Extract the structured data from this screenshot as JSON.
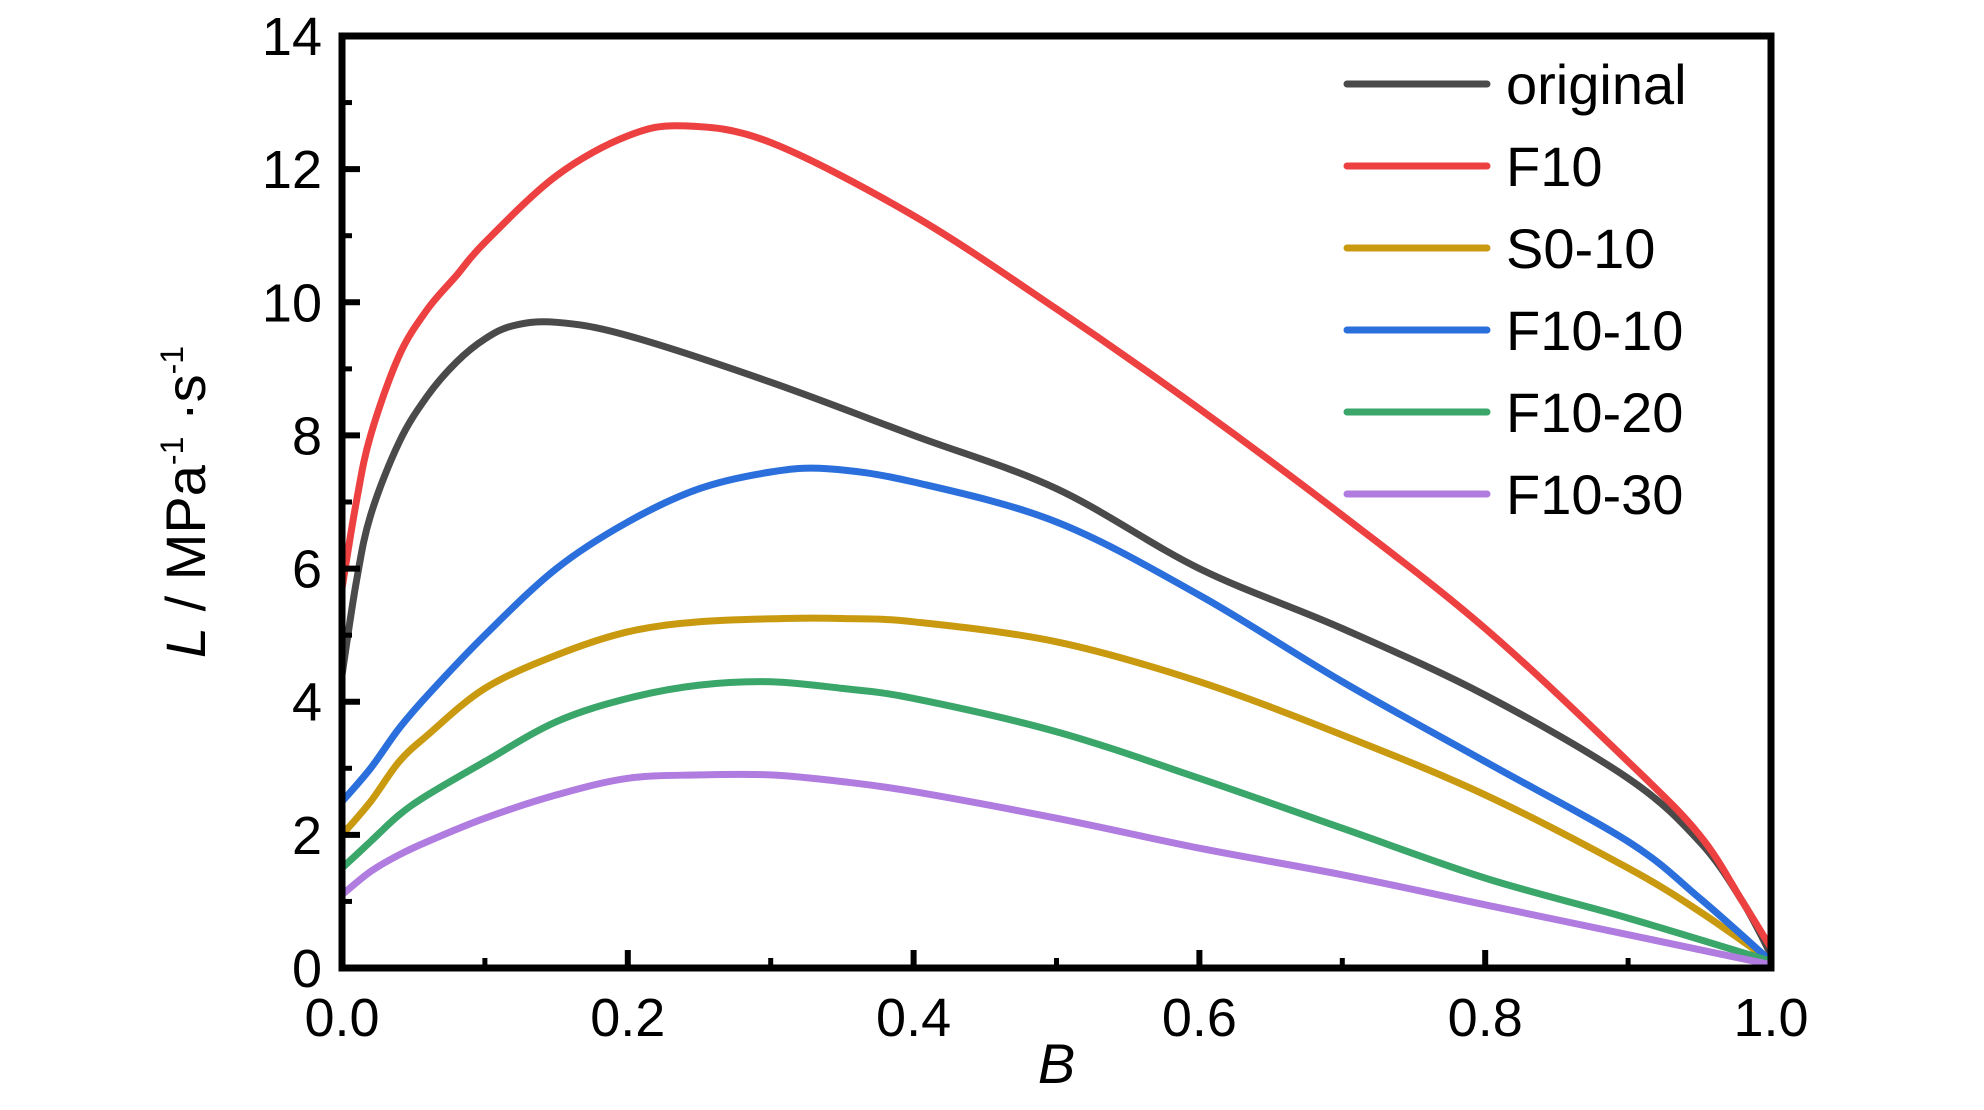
{
  "chart_data": {
    "type": "line",
    "xlabel": "B",
    "ylabel": {
      "symbol": "L",
      "separator": " / ",
      "unit_base": "MPa",
      "unit_exp1": "-1",
      "unit_mid": " ·s",
      "unit_exp2": "-1"
    },
    "xlim": [
      0,
      1
    ],
    "ylim": [
      0,
      14
    ],
    "xticks": [
      0.0,
      0.2,
      0.4,
      0.6,
      0.8,
      1.0
    ],
    "xtick_labels": [
      "0.0",
      "0.2",
      "0.4",
      "0.6",
      "0.8",
      "1.0"
    ],
    "yticks": [
      0,
      2,
      4,
      6,
      8,
      10,
      12,
      14
    ],
    "ytick_labels": [
      "0",
      "2",
      "4",
      "6",
      "8",
      "10",
      "12",
      "14"
    ],
    "grid": false,
    "legend_position": "top-right",
    "series": [
      {
        "name": "original",
        "color": "#4a4a4a",
        "points": [
          [
            0,
            4.4
          ],
          [
            0.01,
            5.8
          ],
          [
            0.02,
            6.8
          ],
          [
            0.04,
            7.9
          ],
          [
            0.06,
            8.6
          ],
          [
            0.08,
            9.1
          ],
          [
            0.1,
            9.45
          ],
          [
            0.12,
            9.65
          ],
          [
            0.15,
            9.7
          ],
          [
            0.2,
            9.5
          ],
          [
            0.3,
            8.8
          ],
          [
            0.4,
            8.0
          ],
          [
            0.5,
            7.2
          ],
          [
            0.6,
            6.0
          ],
          [
            0.7,
            5.1
          ],
          [
            0.8,
            4.1
          ],
          [
            0.9,
            2.85
          ],
          [
            0.95,
            1.9
          ],
          [
            0.98,
            1.0
          ],
          [
            1.0,
            0.2
          ]
        ]
      },
      {
        "name": "F10",
        "color": "#ed4040",
        "points": [
          [
            0,
            5.7
          ],
          [
            0.01,
            7.0
          ],
          [
            0.02,
            8.0
          ],
          [
            0.04,
            9.2
          ],
          [
            0.06,
            9.9
          ],
          [
            0.08,
            10.4
          ],
          [
            0.1,
            10.9
          ],
          [
            0.15,
            11.9
          ],
          [
            0.2,
            12.5
          ],
          [
            0.24,
            12.65
          ],
          [
            0.3,
            12.4
          ],
          [
            0.4,
            11.3
          ],
          [
            0.5,
            9.9
          ],
          [
            0.6,
            8.4
          ],
          [
            0.7,
            6.8
          ],
          [
            0.8,
            5.1
          ],
          [
            0.9,
            3.1
          ],
          [
            0.95,
            2.0
          ],
          [
            0.98,
            1.0
          ],
          [
            1.0,
            0.3
          ]
        ]
      },
      {
        "name": "S0-10",
        "color": "#c99a10",
        "points": [
          [
            0,
            2.0
          ],
          [
            0.02,
            2.5
          ],
          [
            0.04,
            3.1
          ],
          [
            0.06,
            3.5
          ],
          [
            0.1,
            4.2
          ],
          [
            0.15,
            4.7
          ],
          [
            0.2,
            5.05
          ],
          [
            0.25,
            5.2
          ],
          [
            0.31,
            5.25
          ],
          [
            0.35,
            5.25
          ],
          [
            0.4,
            5.2
          ],
          [
            0.5,
            4.9
          ],
          [
            0.6,
            4.3
          ],
          [
            0.7,
            3.5
          ],
          [
            0.8,
            2.6
          ],
          [
            0.9,
            1.5
          ],
          [
            0.95,
            0.85
          ],
          [
            1.0,
            0.1
          ]
        ]
      },
      {
        "name": "F10-10",
        "color": "#2a6fdb",
        "points": [
          [
            0,
            2.5
          ],
          [
            0.02,
            3.0
          ],
          [
            0.04,
            3.6
          ],
          [
            0.06,
            4.1
          ],
          [
            0.1,
            5.0
          ],
          [
            0.15,
            6.0
          ],
          [
            0.2,
            6.7
          ],
          [
            0.25,
            7.2
          ],
          [
            0.3,
            7.45
          ],
          [
            0.34,
            7.5
          ],
          [
            0.4,
            7.3
          ],
          [
            0.5,
            6.7
          ],
          [
            0.6,
            5.6
          ],
          [
            0.7,
            4.3
          ],
          [
            0.8,
            3.1
          ],
          [
            0.9,
            1.9
          ],
          [
            0.95,
            1.05
          ],
          [
            1.0,
            0.1
          ]
        ]
      },
      {
        "name": "F10-20",
        "color": "#3aa66a",
        "points": [
          [
            0,
            1.5
          ],
          [
            0.02,
            1.9
          ],
          [
            0.04,
            2.3
          ],
          [
            0.06,
            2.6
          ],
          [
            0.1,
            3.1
          ],
          [
            0.15,
            3.7
          ],
          [
            0.2,
            4.05
          ],
          [
            0.25,
            4.25
          ],
          [
            0.3,
            4.3
          ],
          [
            0.35,
            4.2
          ],
          [
            0.4,
            4.05
          ],
          [
            0.5,
            3.55
          ],
          [
            0.6,
            2.85
          ],
          [
            0.7,
            2.1
          ],
          [
            0.8,
            1.35
          ],
          [
            0.9,
            0.75
          ],
          [
            1.0,
            0.1
          ]
        ]
      },
      {
        "name": "F10-30",
        "color": "#b07ce0",
        "points": [
          [
            0,
            1.1
          ],
          [
            0.02,
            1.45
          ],
          [
            0.04,
            1.7
          ],
          [
            0.06,
            1.9
          ],
          [
            0.1,
            2.25
          ],
          [
            0.15,
            2.6
          ],
          [
            0.2,
            2.85
          ],
          [
            0.25,
            2.9
          ],
          [
            0.3,
            2.9
          ],
          [
            0.35,
            2.8
          ],
          [
            0.4,
            2.65
          ],
          [
            0.5,
            2.25
          ],
          [
            0.6,
            1.8
          ],
          [
            0.7,
            1.4
          ],
          [
            0.8,
            0.95
          ],
          [
            0.9,
            0.5
          ],
          [
            1.0,
            0.05
          ]
        ]
      }
    ]
  }
}
